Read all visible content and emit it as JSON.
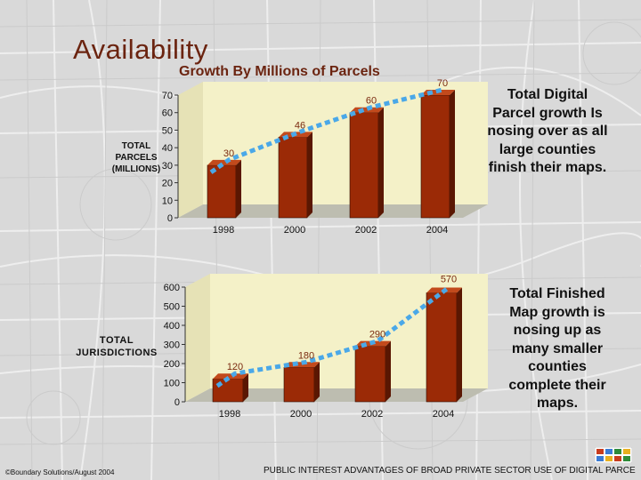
{
  "page": {
    "title": "Availability",
    "subtitle": "Growth By Millions of Parcels",
    "caption1": "Total Digital Parcel growth Is nosing over as all large counties finish their maps.",
    "caption2": "Total Finished Map growth is nosing up as many smaller counties complete their maps.",
    "footer_left": "©Boundary Solutions/August 2004",
    "footer_right": "PUBLIC INTEREST ADVANTAGES OF BROAD PRIVATE SECTOR USE OF DIGITAL PARCE"
  },
  "colors": {
    "bar": "#9b2a06",
    "bar_dark": "#5a1702",
    "plot_bg": "#f4f1c8",
    "trend": "#4aa8e8",
    "title": "#6b2410"
  },
  "chart_data": [
    {
      "type": "bar",
      "ylabel": "TOTAL PARCELS (MILLIONS)",
      "categories": [
        "1998",
        "2000",
        "2002",
        "2004"
      ],
      "values": [
        30,
        46,
        60,
        70
      ],
      "data_labels": [
        "30",
        "46",
        "60",
        "70"
      ],
      "yticks": [
        0,
        10,
        20,
        30,
        40,
        50,
        60,
        70
      ],
      "ylim": [
        0,
        70
      ],
      "trendline": true
    },
    {
      "type": "bar",
      "ylabel": "TOTAL JURISDICTIONS",
      "categories": [
        "1998",
        "2000",
        "2002",
        "2004"
      ],
      "values": [
        120,
        180,
        290,
        570
      ],
      "data_labels": [
        "120",
        "180",
        "290",
        "570"
      ],
      "yticks": [
        0,
        100,
        200,
        300,
        400,
        500,
        600
      ],
      "ylim": [
        0,
        600
      ],
      "trendline": true
    }
  ]
}
